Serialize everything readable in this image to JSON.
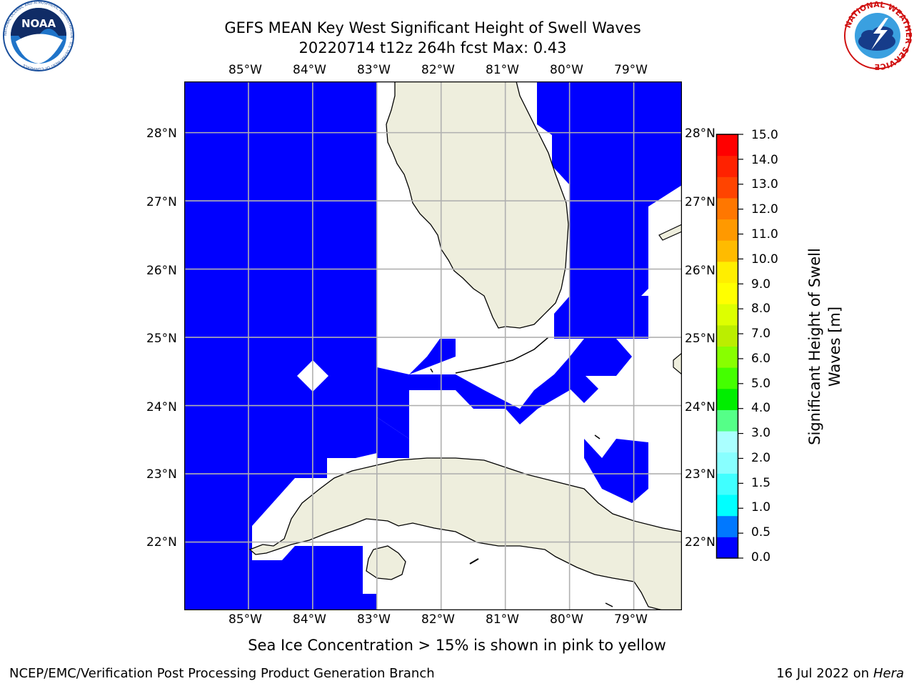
{
  "header": {
    "title_line1": "GEFS MEAN Key West Significant Height of Swell Waves",
    "title_line2": "20220714 t12z 264h fcst   Max: 0.43",
    "noaa_logo_text": "NOAA",
    "noaa_ring_text": "NATIONAL OCEANIC AND ATMOSPHERIC ADMINISTRATION · U.S. DEPARTMENT OF COMMERCE",
    "nws_ring_text": "NATIONAL WEATHER SERVICE"
  },
  "map": {
    "lon_labels": [
      "85°W",
      "84°W",
      "83°W",
      "82°W",
      "81°W",
      "80°W",
      "79°W"
    ],
    "lat_labels": [
      "28°N",
      "27°N",
      "26°N",
      "25°N",
      "24°N",
      "23°N",
      "22°N"
    ],
    "extent": {
      "lon_min": -86.0,
      "lon_max": -78.25,
      "lat_min": 21.0,
      "lat_max": 28.75
    },
    "ocean_fill": "#0000ff",
    "land_fill": "#eeeedd",
    "gridline_color": "#b0b0b0"
  },
  "colorbar": {
    "label": "Significant Height of Swell Waves [m]",
    "ticks": [
      "15.0",
      "14.0",
      "13.0",
      "12.0",
      "11.0",
      "10.0",
      "9.0",
      "8.0",
      "7.0",
      "6.0",
      "5.0",
      "4.0",
      "3.0",
      "2.0",
      "1.5",
      "1.0",
      "0.5",
      "0.0"
    ],
    "colors_bottom_to_top": [
      "#0000ff",
      "#0078ff",
      "#00ffff",
      "#40ffff",
      "#88ffff",
      "#aaffff",
      "#55ff88",
      "#00ee00",
      "#44ff00",
      "#88ff00",
      "#bbee00",
      "#ddff00",
      "#ffff00",
      "#ffee00",
      "#ffbb00",
      "#ff9900",
      "#ff7700",
      "#ff4400",
      "#ff2200",
      "#ff0000"
    ]
  },
  "footer": {
    "note": "Sea Ice Concentration > 15% is shown in pink to yellow",
    "org": "NCEP/EMC/Verification Post Processing Product Generation Branch",
    "date": "16 Jul 2022 on ",
    "host": "Hera"
  }
}
